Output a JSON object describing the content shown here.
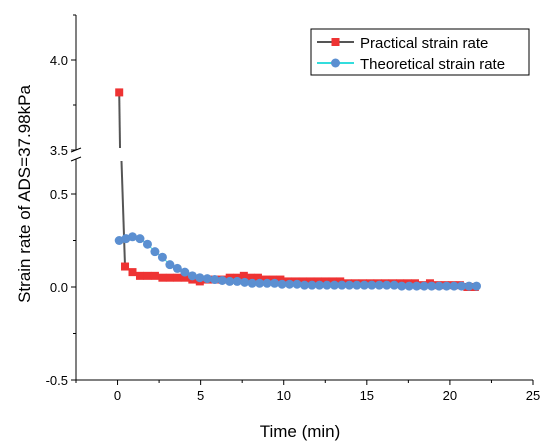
{
  "chart_data": {
    "type": "scatter",
    "x_label": "Time (min)",
    "y_label": "Strain rate of ADS=37.98kPa",
    "x_range": [
      -2.5,
      25
    ],
    "x_ticks": [
      "0",
      "5",
      "10",
      "15",
      "20",
      "25"
    ],
    "x_tick_values": [
      0,
      5,
      10,
      15,
      20,
      25
    ],
    "y_break": true,
    "y_lower_range": [
      -0.5,
      0.52
    ],
    "y_upper_range": [
      3.5,
      4.25
    ],
    "y_ticks": [
      "-0.5",
      "0.0",
      "0.5",
      "3.5",
      "4.0"
    ],
    "y_tick_values": [
      -0.5,
      0.0,
      0.5,
      3.5,
      4.0
    ],
    "legend_position": "top-right",
    "series": [
      {
        "name": "Practical strain rate",
        "marker": "square",
        "color": "#ee3333",
        "line_color": "#555555",
        "x": [
          0.1,
          0.45,
          0.9,
          1.35,
          1.8,
          2.25,
          2.7,
          3.15,
          3.6,
          4.05,
          4.5,
          4.95,
          5.4,
          5.85,
          6.3,
          6.75,
          7.2,
          7.6,
          8.0,
          8.45,
          8.9,
          9.35,
          9.8,
          10.25,
          10.7,
          11.15,
          11.6,
          12.05,
          12.5,
          12.95,
          13.4,
          13.85,
          14.3,
          14.75,
          15.2,
          15.65,
          16.1,
          16.55,
          17.0,
          17.45,
          17.9,
          18.35,
          18.8,
          19.25,
          19.7,
          20.15,
          20.6,
          21.05,
          21.5
        ],
        "y": [
          3.82,
          0.11,
          0.08,
          0.06,
          0.06,
          0.06,
          0.05,
          0.05,
          0.05,
          0.05,
          0.04,
          0.03,
          0.04,
          0.04,
          0.04,
          0.05,
          0.05,
          0.06,
          0.05,
          0.05,
          0.04,
          0.04,
          0.04,
          0.03,
          0.03,
          0.03,
          0.03,
          0.03,
          0.03,
          0.03,
          0.03,
          0.02,
          0.02,
          0.02,
          0.02,
          0.02,
          0.02,
          0.02,
          0.02,
          0.02,
          0.02,
          0.01,
          0.02,
          0.01,
          0.01,
          0.01,
          0.01,
          0.0,
          0.0
        ]
      },
      {
        "name": "Theoretical strain rate",
        "marker": "circle",
        "color": "#5b8fd1",
        "line_color": "#33dddd",
        "x": [
          0.1,
          0.5,
          0.9,
          1.35,
          1.8,
          2.25,
          2.7,
          3.15,
          3.6,
          4.05,
          4.5,
          4.95,
          5.4,
          5.85,
          6.3,
          6.75,
          7.2,
          7.65,
          8.1,
          8.55,
          9.0,
          9.45,
          9.9,
          10.35,
          10.8,
          11.25,
          11.7,
          12.15,
          12.6,
          13.05,
          13.5,
          13.95,
          14.4,
          14.85,
          15.3,
          15.75,
          16.2,
          16.65,
          17.1,
          17.55,
          18.0,
          18.45,
          18.9,
          19.35,
          19.8,
          20.25,
          20.7,
          21.15,
          21.6
        ],
        "y": [
          0.25,
          0.26,
          0.27,
          0.26,
          0.23,
          0.19,
          0.16,
          0.12,
          0.1,
          0.08,
          0.06,
          0.05,
          0.045,
          0.04,
          0.035,
          0.03,
          0.03,
          0.025,
          0.02,
          0.02,
          0.02,
          0.02,
          0.015,
          0.015,
          0.015,
          0.01,
          0.01,
          0.01,
          0.01,
          0.01,
          0.01,
          0.01,
          0.01,
          0.01,
          0.01,
          0.01,
          0.01,
          0.01,
          0.005,
          0.005,
          0.005,
          0.005,
          0.005,
          0.005,
          0.005,
          0.005,
          0.005,
          0.005,
          0.005
        ]
      }
    ]
  }
}
